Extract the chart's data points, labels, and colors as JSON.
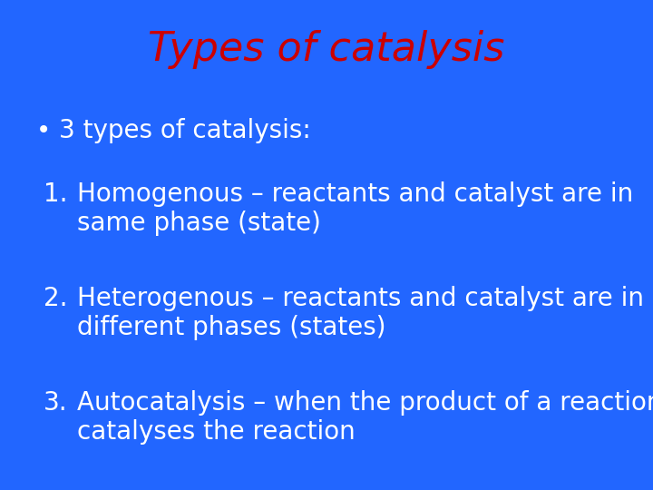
{
  "title": "Types of catalysis",
  "title_color": "#cc0000",
  "title_fontsize": 32,
  "background_color": "#2266ff",
  "text_color": "#ffffff",
  "bullet_text": "3 types of catalysis:",
  "bullet_fontsize": 20,
  "items": [
    {
      "number": "1.",
      "line1": "Homogenous – reactants and catalyst are in",
      "line2": "same phase (state)"
    },
    {
      "number": "2.",
      "line1": "Heterogenous – reactants and catalyst are in",
      "line2": "different phases (states)"
    },
    {
      "number": "3.",
      "line1": "Autocatalysis – when the product of a reaction",
      "line2": "catalyses the reaction"
    }
  ],
  "item_fontsize": 20,
  "font_family": "DejaVu Sans"
}
